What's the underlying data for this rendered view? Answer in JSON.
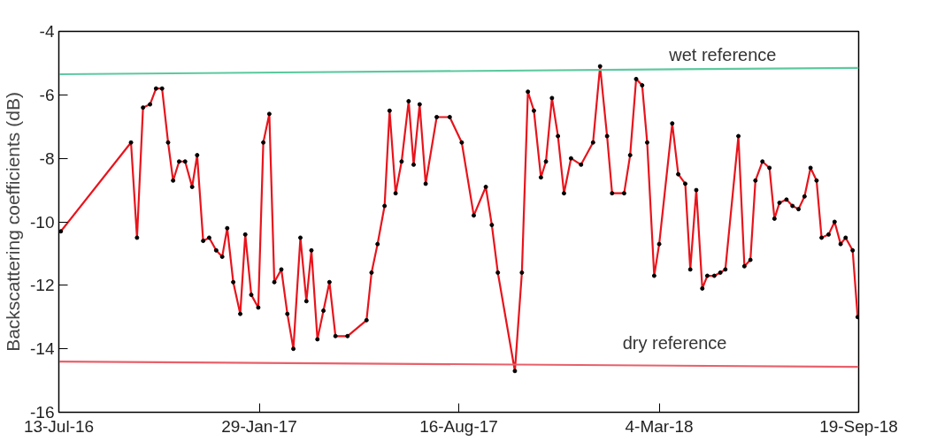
{
  "chart_data": {
    "type": "line",
    "ylabel": "Backscattering coefficients (dB)",
    "xlim": [
      "2016-07-13",
      "2018-09-19"
    ],
    "xticks": [
      {
        "value": "2016-07-13",
        "label": "13-Jul-16"
      },
      {
        "value": "2017-01-29",
        "label": "29-Jan-17"
      },
      {
        "value": "2017-08-16",
        "label": "16-Aug-17"
      },
      {
        "value": "2018-03-04",
        "label": "4-Mar-18"
      },
      {
        "value": "2018-09-19",
        "label": "19-Sep-18"
      }
    ],
    "ylim": [
      -16,
      -4
    ],
    "yticks": [
      -16,
      -14,
      -12,
      -10,
      -8,
      -6,
      -4
    ],
    "grid": false,
    "line_style": "solid",
    "series": [
      {
        "color": "#e8141c",
        "marker": "circle",
        "x": [
          "2016-07-15",
          "2016-09-23",
          "2016-09-29",
          "2016-10-05",
          "2016-10-12",
          "2016-10-18",
          "2016-10-24",
          "2016-10-30",
          "2016-11-04",
          "2016-11-10",
          "2016-11-16",
          "2016-11-23",
          "2016-11-28",
          "2016-12-04",
          "2016-12-10",
          "2016-12-17",
          "2016-12-23",
          "2016-12-28",
          "2017-01-03",
          "2017-01-10",
          "2017-01-15",
          "2017-01-21",
          "2017-01-28",
          "2017-02-02",
          "2017-02-08",
          "2017-02-13",
          "2017-02-20",
          "2017-02-26",
          "2017-03-04",
          "2017-03-11",
          "2017-03-17",
          "2017-03-22",
          "2017-03-28",
          "2017-04-03",
          "2017-04-09",
          "2017-04-15",
          "2017-04-27",
          "2017-05-16",
          "2017-05-21",
          "2017-05-27",
          "2017-06-03",
          "2017-06-08",
          "2017-06-14",
          "2017-06-20",
          "2017-06-27",
          "2017-07-02",
          "2017-07-08",
          "2017-07-14",
          "2017-07-25",
          "2017-08-07",
          "2017-08-19",
          "2017-08-31",
          "2017-09-12",
          "2017-09-18",
          "2017-09-24",
          "2017-10-11",
          "2017-10-18",
          "2017-10-24",
          "2017-10-30",
          "2017-11-06",
          "2017-11-11",
          "2017-11-17",
          "2017-11-23",
          "2017-11-29",
          "2017-12-06",
          "2017-12-16",
          "2017-12-28",
          "2018-01-04",
          "2018-01-11",
          "2018-01-16",
          "2018-01-28",
          "2018-02-03",
          "2018-02-09",
          "2018-02-15",
          "2018-02-20",
          "2018-02-27",
          "2018-03-04",
          "2018-03-17",
          "2018-03-23",
          "2018-03-30",
          "2018-04-04",
          "2018-04-10",
          "2018-04-16",
          "2018-04-21",
          "2018-04-28",
          "2018-05-04",
          "2018-05-09",
          "2018-05-22",
          "2018-05-28",
          "2018-06-03",
          "2018-06-08",
          "2018-06-15",
          "2018-06-22",
          "2018-06-27",
          "2018-07-02",
          "2018-07-09",
          "2018-07-15",
          "2018-07-21",
          "2018-07-27",
          "2018-08-02",
          "2018-08-08",
          "2018-08-13",
          "2018-08-20",
          "2018-08-26",
          "2018-09-01",
          "2018-09-06",
          "2018-09-13",
          "2018-09-18"
        ],
        "values": [
          -10.3,
          -7.5,
          -10.5,
          -6.4,
          -6.3,
          -5.8,
          -5.8,
          -7.5,
          -8.7,
          -8.1,
          -8.1,
          -8.9,
          -7.9,
          -10.6,
          -10.5,
          -10.9,
          -11.1,
          -10.2,
          -11.9,
          -12.9,
          -10.4,
          -12.3,
          -12.7,
          -7.5,
          -6.6,
          -11.9,
          -11.5,
          -12.9,
          -14.0,
          -10.5,
          -12.5,
          -10.9,
          -13.7,
          -12.8,
          -11.9,
          -13.6,
          -13.6,
          -13.1,
          -11.6,
          -10.7,
          -9.5,
          -6.5,
          -9.1,
          -8.1,
          -6.2,
          -8.2,
          -6.3,
          -8.8,
          -6.7,
          -6.7,
          -7.5,
          -9.8,
          -8.9,
          -10.1,
          -11.6,
          -14.7,
          -11.6,
          -5.9,
          -6.5,
          -8.6,
          -8.1,
          -6.1,
          -7.3,
          -9.1,
          -8.0,
          -8.2,
          -7.5,
          -5.1,
          -7.3,
          -9.1,
          -9.1,
          -7.9,
          -5.5,
          -5.7,
          -7.5,
          -11.7,
          -10.7,
          -6.9,
          -8.5,
          -8.8,
          -11.5,
          -9.0,
          -12.1,
          -11.7,
          -11.7,
          -11.6,
          -11.5,
          -7.3,
          -11.4,
          -11.2,
          -8.7,
          -8.1,
          -8.3,
          -9.9,
          -9.4,
          -9.3,
          -9.5,
          -9.6,
          -9.2,
          -8.3,
          -8.7,
          -10.5,
          -10.4,
          -10.0,
          -10.7,
          -10.5,
          -10.9,
          -13.0
        ]
      },
      {
        "name": "wet reference",
        "color": "#5cc9a0",
        "marker": "none",
        "x": [
          "2016-07-13",
          "2018-09-19"
        ],
        "values": [
          -5.35,
          -5.15
        ]
      },
      {
        "name": "dry reference",
        "color": "#e8606a",
        "marker": "none",
        "x": [
          "2016-07-13",
          "2018-09-19"
        ],
        "values": [
          -14.4,
          -14.57
        ]
      }
    ]
  }
}
